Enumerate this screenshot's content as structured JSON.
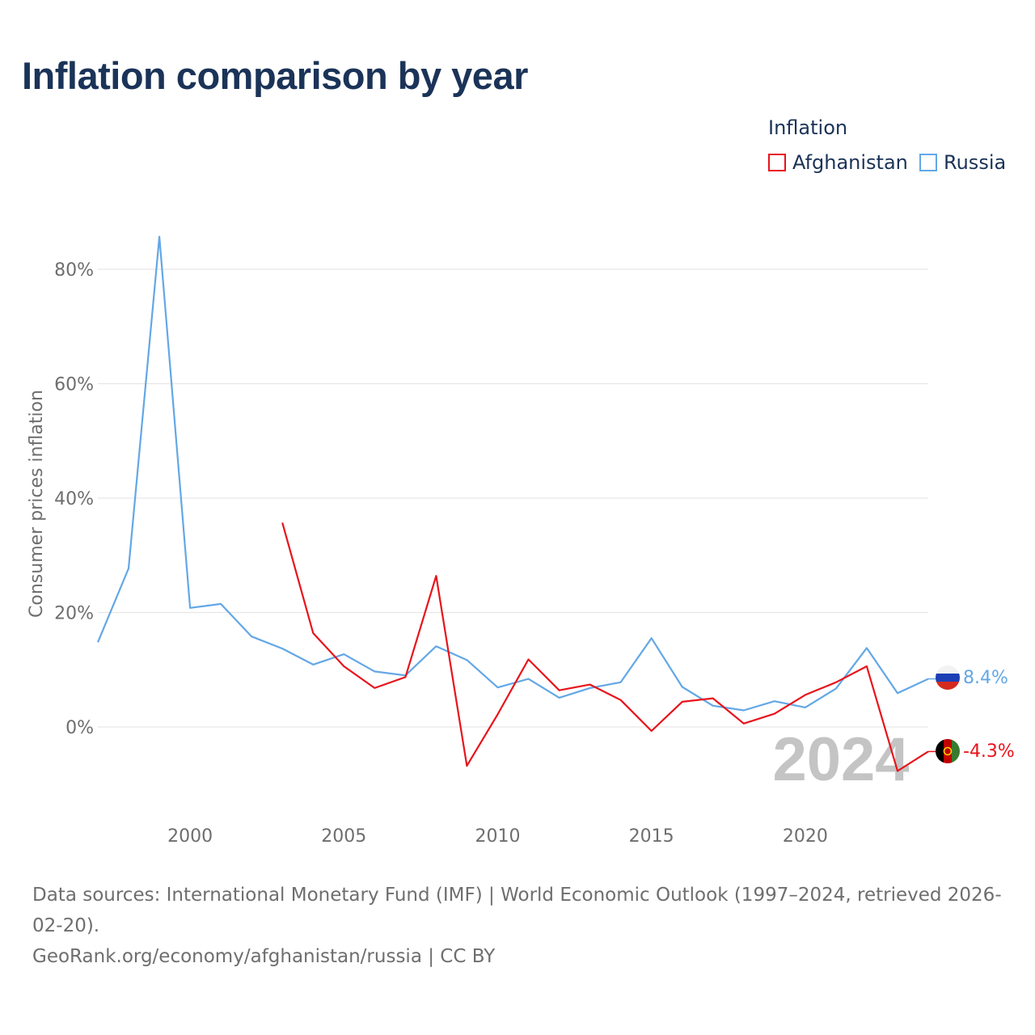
{
  "title": "Inflation comparison by year",
  "legend": {
    "title": "Inflation",
    "items": [
      {
        "label": "Afghanistan",
        "color": "#e8131b"
      },
      {
        "label": "Russia",
        "color": "#63a7e6"
      }
    ]
  },
  "footer": {
    "sources": "Data sources: International Monetary Fund (IMF) | World Economic Outlook (1997–2024, retrieved 2026-02-20).",
    "credit": "GeoRank.org/economy/afghanistan/russia | CC BY"
  },
  "chart_data": {
    "type": "line",
    "title": "Inflation comparison by year",
    "xlabel": "",
    "ylabel": "Consumer prices inflation",
    "xlim": [
      1997,
      2024
    ],
    "ylim": [
      -12,
      86
    ],
    "yticks": [
      0,
      20,
      40,
      60,
      80
    ],
    "ytick_labels": [
      "0%",
      "20%",
      "40%",
      "60%",
      "80%"
    ],
    "xticks": [
      2000,
      2005,
      2010,
      2015,
      2020
    ],
    "xtick_labels": [
      "2000",
      "2005",
      "2010",
      "2015",
      "2020"
    ],
    "grid": true,
    "year_watermark": "2024",
    "series": [
      {
        "name": "Russia",
        "color": "#63a7e6",
        "end_label": "8.4%",
        "x": [
          1997,
          1998,
          1999,
          2000,
          2001,
          2002,
          2003,
          2004,
          2005,
          2006,
          2007,
          2008,
          2009,
          2010,
          2011,
          2012,
          2013,
          2014,
          2015,
          2016,
          2017,
          2018,
          2019,
          2020,
          2021,
          2022,
          2023,
          2024
        ],
        "values": [
          14.8,
          27.7,
          85.7,
          20.8,
          21.5,
          15.8,
          13.7,
          10.9,
          12.7,
          9.7,
          9.0,
          14.1,
          11.7,
          6.9,
          8.4,
          5.1,
          6.8,
          7.8,
          15.5,
          7.0,
          3.7,
          2.9,
          4.5,
          3.4,
          6.7,
          13.8,
          5.9,
          8.4
        ]
      },
      {
        "name": "Afghanistan",
        "color": "#e8131b",
        "end_label": "-4.3%",
        "x": [
          2003,
          2004,
          2005,
          2006,
          2007,
          2008,
          2009,
          2010,
          2011,
          2012,
          2013,
          2014,
          2015,
          2016,
          2017,
          2018,
          2019,
          2020,
          2021,
          2022,
          2023,
          2024
        ],
        "values": [
          35.7,
          16.4,
          10.6,
          6.8,
          8.7,
          26.4,
          -6.8,
          2.2,
          11.8,
          6.4,
          7.4,
          4.7,
          -0.7,
          4.4,
          5.0,
          0.6,
          2.3,
          5.6,
          7.8,
          10.6,
          -7.7,
          -4.3
        ]
      }
    ]
  }
}
